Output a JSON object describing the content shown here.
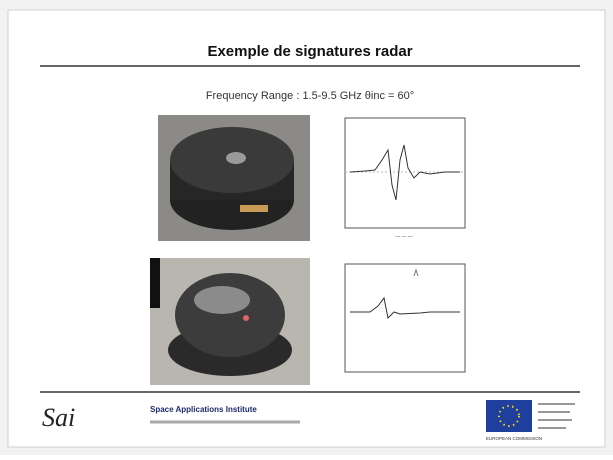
{
  "slide": {
    "title": "Exemple de signatures radar",
    "subtitle": "Frequency Range : 1.5-9.5 GHz  θinc = 60°",
    "footer": {
      "logo": "Sai",
      "institute": "Space Applications Institute",
      "eu_label": "EUROPEAN COMMISSION"
    }
  }
}
